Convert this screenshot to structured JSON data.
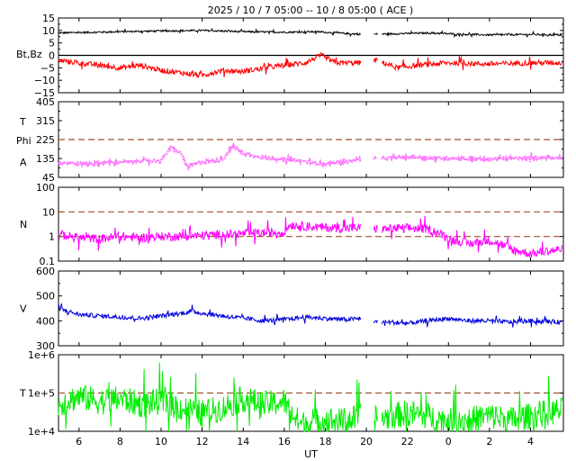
{
  "header": {
    "title": "2025 / 10 /  7   05:00 -- 10 /  8   05:00 ( ACE )"
  },
  "chart_data": {
    "type": "line",
    "title": "2025 / 10 /  7   05:00 -- 10 /  8   05:00 ( ACE )",
    "xlabel": "UT",
    "x_tick_labels": [
      "6",
      "8",
      "10",
      "12",
      "14",
      "16",
      "18",
      "20",
      "22",
      "0",
      "2",
      "4"
    ],
    "xlim_hours_utc": [
      5.0,
      29.6
    ],
    "grid": false,
    "panels": [
      {
        "id": "mag",
        "ylabel": [
          "Bt,Bz"
        ],
        "yscale": "linear",
        "ylim": [
          -15,
          15
        ],
        "yticks": [
          "15",
          "10",
          "5",
          "0",
          "−5",
          "−10",
          "−15"
        ],
        "reference_lines": [
          {
            "value": 0,
            "style": "solid",
            "color": "#000000"
          }
        ],
        "series": [
          {
            "name": "Bt",
            "color": "#000000",
            "x": [
              5.0,
              8,
              10,
              12,
              14,
              16,
              17.5,
              19.6,
              20.5,
              22,
              23.2,
              24.5,
              26,
              28,
              29.5
            ],
            "values": [
              9,
              9.5,
              9.8,
              10,
              9.5,
              9.3,
              9.5,
              8.5,
              8.5,
              8.8,
              9,
              8.5,
              8.2,
              8.4,
              8.2
            ]
          },
          {
            "name": "Bz",
            "color": "#ff0000",
            "x": [
              5.0,
              6,
              7,
              8,
              9,
              10,
              11,
              12,
              13,
              14,
              15,
              16,
              17,
              17.8,
              18.5,
              19.6,
              20.5,
              21.5,
              22.5,
              24,
              26,
              28,
              29.5
            ],
            "values": [
              -2,
              -3,
              -4,
              -5,
              -4,
              -6,
              -7,
              -8,
              -6,
              -6.5,
              -5,
              -4,
              -3,
              0,
              -3,
              -3,
              -2,
              -5,
              -4,
              -3,
              -3.5,
              -3,
              -3
            ]
          }
        ]
      },
      {
        "id": "phi",
        "ylabel": [
          "T",
          "Phi",
          "A"
        ],
        "yscale": "linear",
        "ylim": [
          45,
          405
        ],
        "yticks": [
          "405",
          "315",
          "225",
          "135",
          "45"
        ],
        "reference_lines": [
          {
            "value": 225,
            "style": "dashed",
            "color": "#a0522d"
          }
        ],
        "series": [
          {
            "name": "Phi",
            "color": "#ff77ff",
            "x": [
              5.0,
              6,
              7,
              8,
              9,
              10,
              10.5,
              11,
              11.3,
              11.6,
              12,
              13,
              13.5,
              14,
              15,
              16,
              17,
              18,
              19,
              20,
              20.5,
              22,
              23,
              24,
              26,
              28,
              29.5
            ],
            "values": [
              115,
              110,
              112,
              118,
              122,
              125,
              190,
              155,
              90,
              110,
              118,
              130,
              195,
              160,
              138,
              130,
              120,
              110,
              118,
              140,
              135,
              140,
              138,
              135,
              132,
              138,
              140
            ]
          }
        ]
      },
      {
        "id": "density",
        "ylabel": [
          "N"
        ],
        "yscale": "log",
        "ylim": [
          0.1,
          100
        ],
        "yticks": [
          "100",
          "10",
          "1",
          "0.1"
        ],
        "reference_lines": [
          {
            "value": 10,
            "style": "dashed",
            "color": "#a0522d"
          },
          {
            "value": 1,
            "style": "dashed",
            "color": "#a0522d"
          }
        ],
        "series": [
          {
            "name": "N",
            "color": "#ff00ff",
            "x": [
              5.0,
              6,
              7,
              8,
              9,
              10,
              11,
              12,
              13,
              14,
              15,
              16,
              16.3,
              17,
              18,
              19,
              19.8,
              20.8,
              22,
              23,
              24,
              25,
              26,
              27,
              28,
              29.5
            ],
            "values": [
              1.2,
              0.9,
              0.8,
              1.0,
              0.9,
              1.0,
              1.0,
              1.1,
              1.2,
              1.3,
              1.4,
              1.5,
              3.0,
              2.6,
              2.3,
              2.2,
              2.2,
              2.0,
              2.2,
              2.0,
              0.8,
              0.5,
              0.7,
              0.3,
              0.2,
              0.3
            ]
          }
        ]
      },
      {
        "id": "speed",
        "ylabel": [
          "V"
        ],
        "yscale": "linear",
        "ylim": [
          300,
          600
        ],
        "yticks": [
          "600",
          "500",
          "400",
          "300"
        ],
        "reference_lines": [],
        "series": [
          {
            "name": "V",
            "color": "#0000dd",
            "x": [
              5.0,
              6,
              7,
              8,
              9,
              10,
              11,
              11.5,
              12,
              13,
              14,
              15,
              16,
              17,
              18,
              19,
              19.8,
              20.5,
              21,
              22,
              23,
              24,
              25,
              26,
              27,
              28,
              29.5
            ],
            "values": [
              450,
              425,
              420,
              415,
              410,
              420,
              430,
              440,
              430,
              420,
              410,
              400,
              405,
              415,
              410,
              405,
              410,
              395,
              395,
              390,
              400,
              410,
              400,
              400,
              395,
              400,
              395
            ]
          }
        ]
      },
      {
        "id": "temperature",
        "ylabel": [
          "T"
        ],
        "yscale": "log",
        "ylim": [
          10000,
          1000000
        ],
        "yticks": [
          "1e+6",
          "1e+5",
          "1e+4"
        ],
        "reference_lines": [
          {
            "value": 100000,
            "style": "dashed",
            "color": "#a0522d"
          }
        ],
        "series": [
          {
            "name": "T",
            "color": "#00ee00",
            "x": [
              5.0,
              6,
              7,
              8,
              9,
              10,
              11,
              12,
              13,
              14,
              15,
              16,
              16.3,
              16.8,
              18,
              19,
              19.8,
              20.8,
              22,
              23,
              24,
              25,
              26,
              27,
              28,
              29.5
            ],
            "values": [
              50000,
              80000,
              60000,
              70000,
              50000,
              60000,
              40000,
              30000,
              40000,
              70000,
              50000,
              60000,
              30000,
              15000,
              20000,
              18000,
              25000,
              22000,
              30000,
              25000,
              18000,
              20000,
              25000,
              20000,
              25000,
              35000
            ]
          }
        ]
      }
    ]
  }
}
